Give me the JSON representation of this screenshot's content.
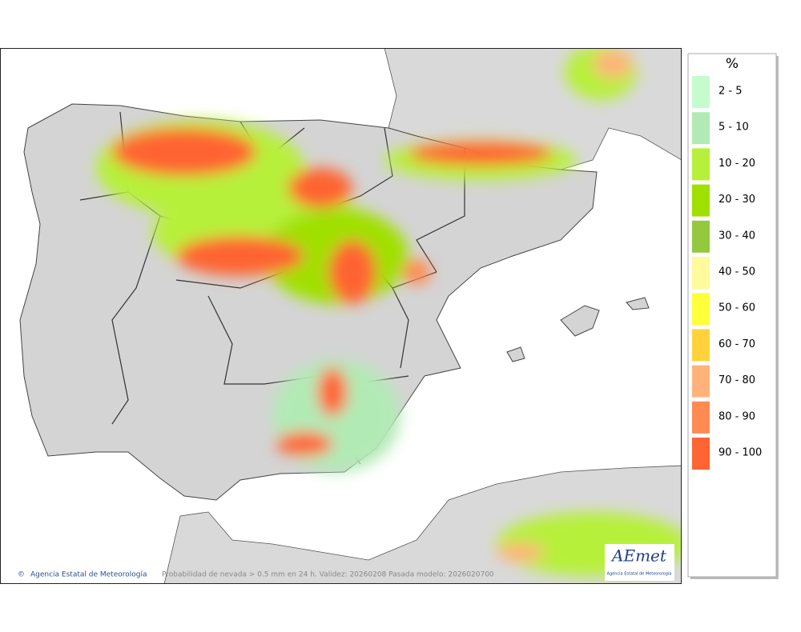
{
  "legend": {
    "title": "%",
    "items": [
      {
        "label": "2 - 5",
        "color": "#c6fbcd"
      },
      {
        "label": "5 - 10",
        "color": "#b2eab5"
      },
      {
        "label": "10 - 20",
        "color": "#b7f03a"
      },
      {
        "label": "20 - 30",
        "color": "#a0e000"
      },
      {
        "label": "30 - 40",
        "color": "#94c83e"
      },
      {
        "label": "40 - 50",
        "color": "#fffa9c"
      },
      {
        "label": "50 - 60",
        "color": "#ffff3a"
      },
      {
        "label": "60 - 70",
        "color": "#ffd23c"
      },
      {
        "label": "70 - 80",
        "color": "#ffb37a"
      },
      {
        "label": "80 - 90",
        "color": "#ff8a52"
      },
      {
        "label": "90 - 100",
        "color": "#ff6433"
      }
    ]
  },
  "footer": {
    "copyright": "Agencia Estatal de Meteorología",
    "caption": "Probabilidad de nevada > 0.5 mm en 24 h. Validez: 20260208 Pasada modelo: 2026020700"
  },
  "logo": {
    "name": "AEmet",
    "subtitle": "Agencia Estatal de Meteorología"
  }
}
